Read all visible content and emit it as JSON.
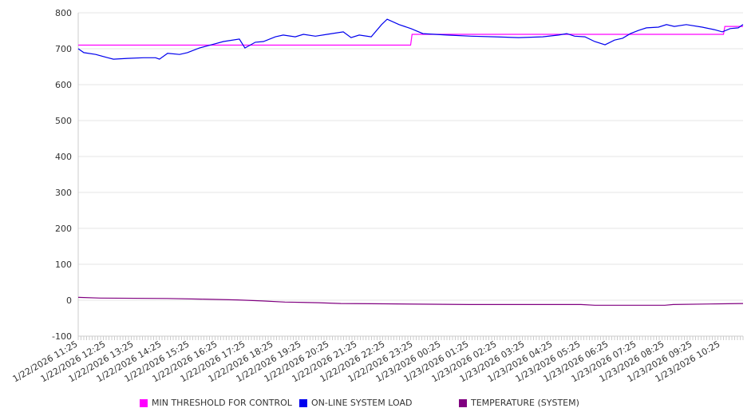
{
  "chart_data": {
    "type": "line",
    "title": "",
    "xlabel": "",
    "ylabel": "",
    "ylim": [
      -100,
      800
    ],
    "yticks": [
      "800",
      "700",
      "600",
      "500",
      "400",
      "300",
      "200",
      "100",
      "0",
      "-100"
    ],
    "grid": true,
    "legend_placement": "bottom",
    "x_unit": "hours since 1/22/2026 11:25",
    "xlim": [
      0,
      23.8
    ],
    "xtick_labels": [
      "1/22/2026 11:25",
      "1/22/2026 12:25",
      "1/22/2026 13:25",
      "1/22/2026 14:25",
      "1/22/2026 15:25",
      "1/22/2026 16:25",
      "1/22/2026 17:25",
      "1/22/2026 18:25",
      "1/22/2026 19:25",
      "1/22/2026 20:25",
      "1/22/2026 21:25",
      "1/22/2026 22:25",
      "1/22/2026 23:25",
      "1/23/2026 00:25",
      "1/23/2026 01:25",
      "1/23/2026 02:25",
      "1/23/2026 03:25",
      "1/23/2026 04:25",
      "1/23/2026 05:25",
      "1/23/2026 06:25",
      "1/23/2026 07:25",
      "1/23/2026 08:25",
      "1/23/2026 09:25",
      "1/23/2026 10:25"
    ],
    "series": [
      {
        "name": "MIN THRESHOLD FOR CONTROL",
        "color": "#ff00ff",
        "step": true,
        "points": [
          [
            0,
            710
          ],
          [
            11.9,
            710
          ],
          [
            11.95,
            740
          ],
          [
            23.1,
            740
          ],
          [
            23.15,
            762
          ],
          [
            23.8,
            762
          ]
        ]
      },
      {
        "name": "ON-LINE SYSTEM LOAD",
        "color": "#0000ee",
        "points": [
          [
            0,
            700
          ],
          [
            0.2,
            689
          ],
          [
            0.63,
            684
          ],
          [
            1.06,
            675
          ],
          [
            1.26,
            671
          ],
          [
            1.77,
            673
          ],
          [
            2.34,
            675
          ],
          [
            2.77,
            675
          ],
          [
            2.91,
            671
          ],
          [
            3.2,
            687
          ],
          [
            3.63,
            684
          ],
          [
            3.91,
            689
          ],
          [
            4.34,
            702
          ],
          [
            4.77,
            711
          ],
          [
            5.2,
            720
          ],
          [
            5.77,
            727
          ],
          [
            5.97,
            702
          ],
          [
            6.34,
            718
          ],
          [
            6.63,
            720
          ],
          [
            7.06,
            733
          ],
          [
            7.34,
            738
          ],
          [
            7.77,
            733
          ],
          [
            8.06,
            740
          ],
          [
            8.49,
            735
          ],
          [
            8.91,
            740
          ],
          [
            9.49,
            747
          ],
          [
            9.77,
            731
          ],
          [
            10.06,
            738
          ],
          [
            10.49,
            733
          ],
          [
            10.86,
            767
          ],
          [
            11.06,
            782
          ],
          [
            11.49,
            767
          ],
          [
            11.91,
            756
          ],
          [
            12.34,
            742
          ],
          [
            13.2,
            738
          ],
          [
            14.06,
            735
          ],
          [
            14.91,
            733
          ],
          [
            15.77,
            731
          ],
          [
            16.63,
            733
          ],
          [
            17.2,
            738
          ],
          [
            17.49,
            742
          ],
          [
            17.77,
            735
          ],
          [
            18.14,
            733
          ],
          [
            18.49,
            720
          ],
          [
            18.86,
            711
          ],
          [
            19.2,
            724
          ],
          [
            19.49,
            729
          ],
          [
            19.77,
            742
          ],
          [
            20.06,
            751
          ],
          [
            20.34,
            758
          ],
          [
            20.77,
            760
          ],
          [
            21.06,
            767
          ],
          [
            21.34,
            762
          ],
          [
            21.77,
            767
          ],
          [
            22.34,
            760
          ],
          [
            22.77,
            753
          ],
          [
            23.06,
            747
          ],
          [
            23.34,
            756
          ],
          [
            23.63,
            758
          ],
          [
            23.8,
            767
          ]
        ]
      },
      {
        "name": "TEMPERATURE (SYSTEM)",
        "color": "#800080",
        "points": [
          [
            0,
            8
          ],
          [
            0.8,
            6
          ],
          [
            3.2,
            5
          ],
          [
            4.4,
            3
          ],
          [
            5.7,
            1
          ],
          [
            6.6,
            -2
          ],
          [
            7.4,
            -5
          ],
          [
            8.6,
            -7
          ],
          [
            9.4,
            -9
          ],
          [
            11,
            -10
          ],
          [
            14,
            -12
          ],
          [
            18,
            -12
          ],
          [
            18.5,
            -14
          ],
          [
            21,
            -14
          ],
          [
            21.3,
            -12
          ],
          [
            23,
            -10
          ],
          [
            23.8,
            -9
          ]
        ]
      }
    ]
  }
}
